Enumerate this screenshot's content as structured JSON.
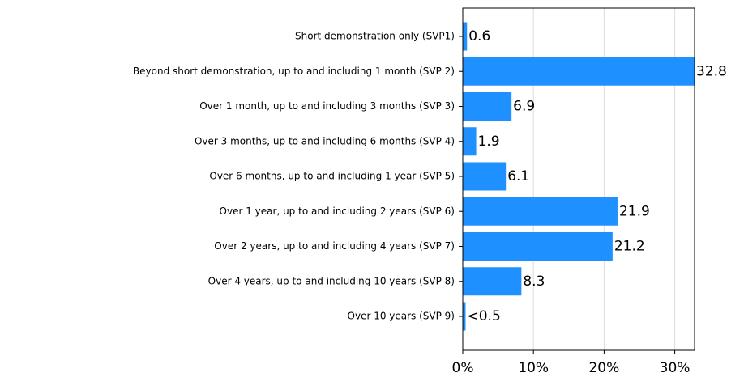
{
  "chart_data": {
    "type": "barh",
    "categories": [
      "Short demonstration only (SVP1)",
      "Beyond short demonstration, up to and including 1 month (SVP 2)",
      "Over 1 month, up to and including 3 months (SVP 3)",
      "Over 3 months, up to and including 6 months (SVP 4)",
      "Over 6 months, up to and including 1 year (SVP 5)",
      "Over 1 year, up to and including 2 years (SVP 6)",
      "Over 2 years, up to and including 4 years (SVP 7)",
      "Over 4 years, up to and including 10 years (SVP 8)",
      "Over 10 years (SVP 9)"
    ],
    "values": [
      0.6,
      32.8,
      6.9,
      1.9,
      6.1,
      21.9,
      21.2,
      8.3,
      0.4
    ],
    "value_labels": [
      "0.6",
      "32.8",
      "6.9",
      "1.9",
      "6.1",
      "21.9",
      "21.2",
      "8.3",
      "<0.5"
    ],
    "color": "#1e90ff",
    "xlim": [
      0,
      32.8
    ],
    "xticks": [
      {
        "value": 0,
        "label": "0%"
      },
      {
        "value": 10,
        "label": "10%"
      },
      {
        "value": 20,
        "label": "20%"
      },
      {
        "value": 30,
        "label": "30%"
      }
    ],
    "grid": true
  }
}
